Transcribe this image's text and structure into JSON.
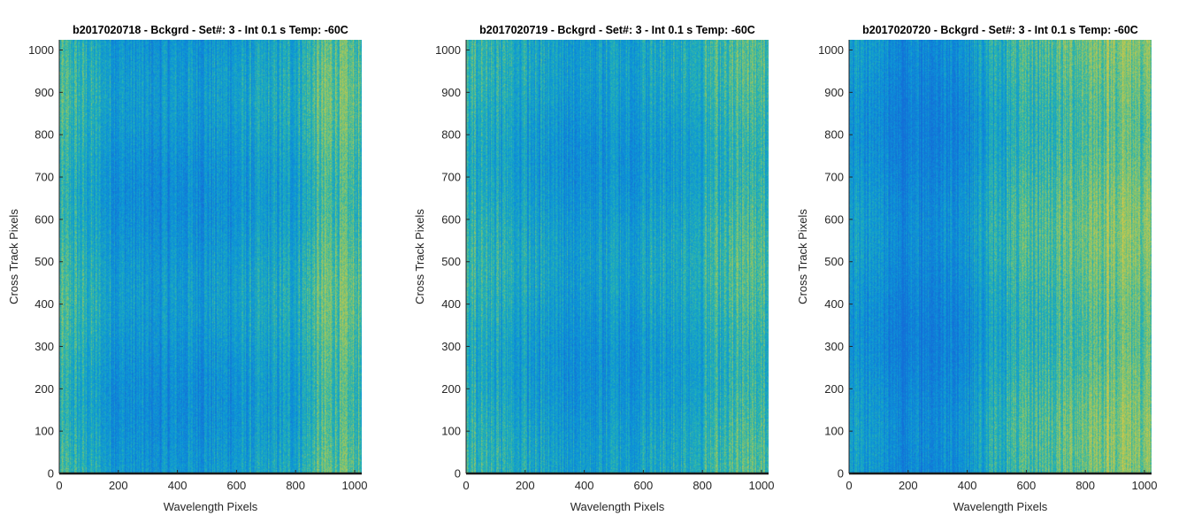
{
  "figure": {
    "colors": {
      "background": "#ffffff",
      "axis": "#262626",
      "baseline": "#1a1a1a"
    }
  },
  "chart_data": [
    {
      "type": "heatmap",
      "title": "b2017020718 - Bckgrd - Set#: 3 - Int 0.1 s Temp: -60C",
      "xlabel": "Wavelength Pixels",
      "ylabel": "Cross Track Pixels",
      "xlim": [
        0,
        1024
      ],
      "ylim": [
        0,
        1024
      ],
      "xticks": [
        0,
        200,
        400,
        600,
        800,
        1000
      ],
      "yticks": [
        0,
        100,
        200,
        300,
        400,
        500,
        600,
        700,
        800,
        900,
        1000
      ],
      "colormap": "parula",
      "column_intensity": {
        "x": [
          0,
          100,
          200,
          300,
          400,
          500,
          600,
          700,
          800,
          900,
          1024
        ],
        "level": [
          0.55,
          0.45,
          0.3,
          0.25,
          0.28,
          0.3,
          0.32,
          0.35,
          0.42,
          0.65,
          0.6
        ]
      },
      "grid": false
    },
    {
      "type": "heatmap",
      "title": "b2017020719 - Bckgrd - Set#: 3 - Int 0.1 s Temp: -60C",
      "xlabel": "Wavelength Pixels",
      "ylabel": "Cross Track Pixels",
      "xlim": [
        0,
        1024
      ],
      "ylim": [
        0,
        1024
      ],
      "xticks": [
        0,
        200,
        400,
        600,
        800,
        1000
      ],
      "yticks": [
        0,
        100,
        200,
        300,
        400,
        500,
        600,
        700,
        800,
        900,
        1000
      ],
      "colormap": "parula",
      "column_intensity": {
        "x": [
          0,
          100,
          200,
          300,
          400,
          500,
          600,
          700,
          800,
          900,
          1024
        ],
        "level": [
          0.5,
          0.48,
          0.38,
          0.32,
          0.3,
          0.33,
          0.35,
          0.4,
          0.48,
          0.58,
          0.55
        ]
      },
      "grid": false
    },
    {
      "type": "heatmap",
      "title": "b2017020720 - Bckgrd - Set#: 3 - Int 0.1 s Temp: -60C",
      "xlabel": "Wavelength Pixels",
      "ylabel": "Cross Track Pixels",
      "xlim": [
        0,
        1024
      ],
      "ylim": [
        0,
        1024
      ],
      "xticks": [
        0,
        200,
        400,
        600,
        800,
        1000
      ],
      "yticks": [
        0,
        100,
        200,
        300,
        400,
        500,
        600,
        700,
        800,
        900,
        1000
      ],
      "colormap": "parula",
      "column_intensity": {
        "x": [
          0,
          100,
          200,
          300,
          400,
          500,
          600,
          700,
          800,
          900,
          1024
        ],
        "level": [
          0.35,
          0.25,
          0.15,
          0.18,
          0.28,
          0.45,
          0.55,
          0.6,
          0.68,
          0.75,
          0.7
        ]
      },
      "grid": false
    }
  ]
}
